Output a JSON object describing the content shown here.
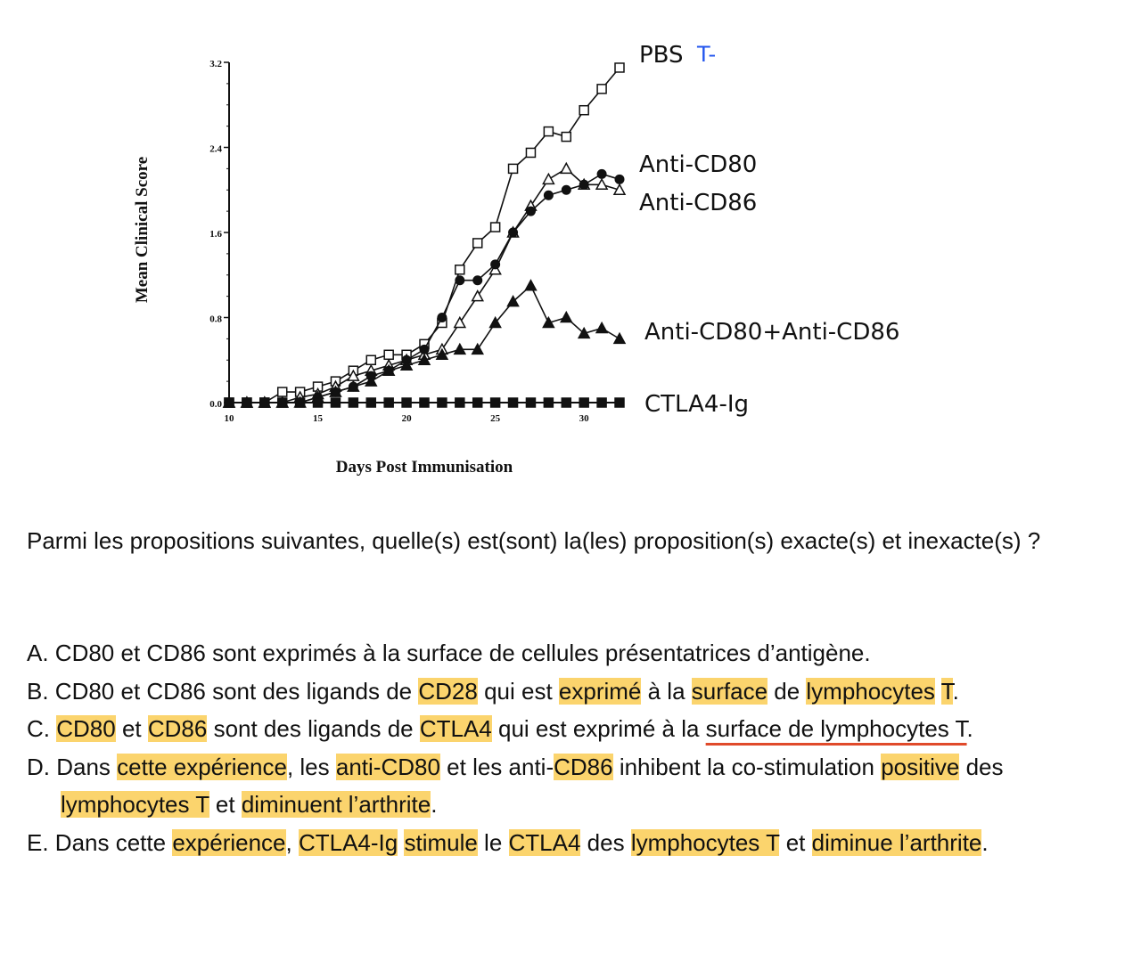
{
  "chart_data": {
    "type": "line",
    "xlabel": "Days Post Immunisation",
    "ylabel": "Mean Clinical Score",
    "xlim": [
      10,
      32
    ],
    "ylim": [
      0,
      3.2
    ],
    "xticks": [
      "10",
      "15",
      "20",
      "25",
      "30"
    ],
    "yticks": [
      "0.0",
      "0.8",
      "1.6",
      "2.4",
      "3.2"
    ],
    "x": [
      10,
      11,
      12,
      13,
      14,
      15,
      16,
      17,
      18,
      19,
      20,
      21,
      22,
      23,
      24,
      25,
      26,
      27,
      28,
      29,
      30,
      31,
      32
    ],
    "series": [
      {
        "name": "PBS",
        "marker": "open-square",
        "values": [
          0,
          0,
          0,
          0.1,
          0.1,
          0.15,
          0.2,
          0.3,
          0.4,
          0.45,
          0.45,
          0.55,
          0.75,
          1.25,
          1.5,
          1.65,
          2.2,
          2.35,
          2.55,
          2.5,
          2.75,
          2.95,
          3.15
        ]
      },
      {
        "name": "Anti-CD80",
        "marker": "open-triangle",
        "values": [
          0,
          0,
          0,
          0,
          0.05,
          0.08,
          0.15,
          0.25,
          0.3,
          0.35,
          0.4,
          0.45,
          0.5,
          0.75,
          1.0,
          1.25,
          1.6,
          1.85,
          2.1,
          2.2,
          2.05,
          2.05,
          2.0
        ]
      },
      {
        "name": "Anti-CD86",
        "marker": "filled-circle",
        "values": [
          0,
          0,
          0,
          0,
          0,
          0.05,
          0.1,
          0.15,
          0.25,
          0.3,
          0.4,
          0.5,
          0.8,
          1.15,
          1.15,
          1.3,
          1.6,
          1.8,
          1.95,
          2.0,
          2.05,
          2.15,
          2.1
        ]
      },
      {
        "name": "Anti-CD80+Anti-CD86",
        "marker": "filled-triangle",
        "values": [
          0,
          0,
          0,
          0,
          0,
          0.05,
          0.1,
          0.15,
          0.2,
          0.3,
          0.35,
          0.4,
          0.45,
          0.5,
          0.5,
          0.75,
          0.95,
          1.1,
          0.75,
          0.8,
          0.65,
          0.7,
          0.6
        ]
      },
      {
        "name": "CTLA4-Ig",
        "marker": "filled-square",
        "values": [
          0,
          0,
          0,
          0,
          0,
          0,
          0,
          0,
          0,
          0,
          0,
          0,
          0,
          0,
          0,
          0,
          0,
          0,
          0,
          0,
          0,
          0,
          0
        ]
      }
    ],
    "annotation": "T-"
  },
  "question": "Parmi les propositions suivantes, quelle(s) est(sont) la(les) proposition(s) exacte(s) et inexacte(s) ?",
  "options": {
    "a": [
      "A. CD80 et CD86 sont exprimés à la surface de cellules présentatrices d’antigène."
    ],
    "b": [
      "B. CD80 et CD86 sont des ligands de ",
      "CD28",
      " qui est ",
      "exprimé",
      " à la ",
      "surface",
      " de ",
      "lymphocytes",
      " ",
      "T",
      "."
    ],
    "c": [
      "C. ",
      "CD80",
      " et ",
      "CD86",
      " sont des ligands de ",
      "CTLA4",
      " qui est exprimé à la ",
      "surface de lymphocytes T",
      "."
    ],
    "d": [
      "D. Dans ",
      "cette expérience",
      ", les ",
      "anti-CD80",
      " et les anti-",
      "CD86",
      " inhibent la co-stimulation ",
      "positive",
      " des ",
      "lymphocytes T",
      " et ",
      "diminuent l’arthrite",
      "."
    ],
    "e": [
      "E. Dans cette ",
      "expérience",
      ", ",
      "CTLA4-Ig",
      " ",
      "stimule",
      " le ",
      "CTLA4",
      " des ",
      "lymphocytes T",
      " et ",
      "diminue l’arthrite",
      "."
    ]
  }
}
